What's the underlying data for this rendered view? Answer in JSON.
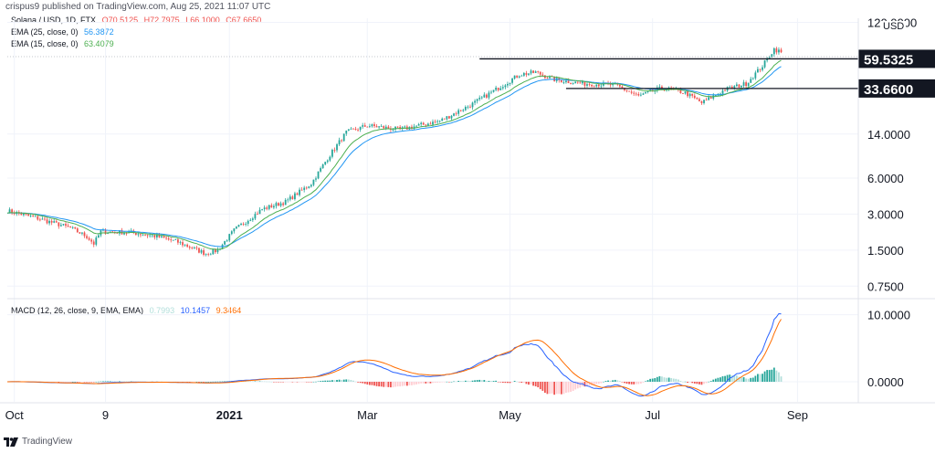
{
  "header": {
    "publish_line": "crispus9 published on TradingView.com, Aug 25, 2021 11:07 UTC",
    "symbol": "Solana / USD, 1D, FTX",
    "ohlc": {
      "o": "O70.5125",
      "h": "H72.7975",
      "l": "L66.1000",
      "c": "C67.6650"
    }
  },
  "indicators": [
    {
      "label": "EMA (25, close, 0)",
      "value": "56.3872",
      "color": "#2196f3"
    },
    {
      "label": "EMA (15, close, 0)",
      "value": "63.4079",
      "color": "#4caf50"
    }
  ],
  "macd": {
    "label": "MACD (12, 26, close, 9, EMA, EMA)",
    "histogram_value": "0.7993",
    "macd_value": "10.1457",
    "signal_value": "9.3464",
    "histogram_color": "#b2dfdb",
    "macd_color": "#2962ff",
    "signal_color": "#ff6d00"
  },
  "price_axis": {
    "currency": "USD",
    "tick_labels": [
      "120.0000",
      "14.0000",
      "6.0000",
      "3.0000",
      "1.5000",
      "0.7500"
    ],
    "macd_tick_labels": [
      "10.0000",
      "0.0000"
    ]
  },
  "levels": [
    {
      "label": "59.5325",
      "value": 59.5325
    },
    {
      "label": "33.6600",
      "value": 33.66
    }
  ],
  "time_axis": {
    "labels": [
      "Oct",
      "9",
      "2021",
      "Mar",
      "May",
      "Jul",
      "Sep"
    ]
  },
  "footer": {
    "brand": "TradingView",
    "logo_icon": "tradingview-logo-icon"
  },
  "colors": {
    "up": "#26a69a",
    "down": "#ef5350",
    "grid": "#f0f3fa",
    "axis_line": "#e0e3eb"
  },
  "chart_data": {
    "type": "candlestick",
    "scale": "log",
    "title": "Solana / USD, 1D, FTX",
    "ylabel": "USD",
    "ylim": [
      0.6,
      130
    ],
    "x": [
      "2020-10",
      "2020-11",
      "2020-12",
      "2021-01",
      "2021-02",
      "2021-03",
      "2021-04",
      "2021-05",
      "2021-06",
      "2021-07",
      "2021-08"
    ],
    "close_anchors": {
      "dates": [
        "2020-09-28",
        "2020-10-10",
        "2020-10-25",
        "2020-11-01",
        "2020-11-04",
        "2020-11-07",
        "2020-11-20",
        "2020-12-01",
        "2020-12-10",
        "2020-12-22",
        "2020-12-27",
        "2021-01-03",
        "2021-01-15",
        "2021-01-25",
        "2021-02-05",
        "2021-02-12",
        "2021-02-20",
        "2021-03-01",
        "2021-03-15",
        "2021-04-01",
        "2021-04-15",
        "2021-04-25",
        "2021-05-05",
        "2021-05-12",
        "2021-05-20",
        "2021-06-01",
        "2021-06-15",
        "2021-06-25",
        "2021-07-05",
        "2021-07-15",
        "2021-07-22",
        "2021-08-01",
        "2021-08-10",
        "2021-08-17",
        "2021-08-22",
        "2021-08-25"
      ],
      "close": [
        3.2,
        2.8,
        2.3,
        1.95,
        1.7,
        2.15,
        2.1,
        1.95,
        1.75,
        1.4,
        1.5,
        2.2,
        3.3,
        3.8,
        5.4,
        8.8,
        14.5,
        16.5,
        15.3,
        18.0,
        25.0,
        33.0,
        44.0,
        46.0,
        40.0,
        37.0,
        36.0,
        29.0,
        34.0,
        31.0,
        25.5,
        33.0,
        37.0,
        52.0,
        72.0,
        67.665
      ]
    },
    "series": [
      {
        "name": "EMA (25, close, 0)",
        "last": 56.3872
      },
      {
        "name": "EMA (15, close, 0)",
        "last": 63.4079
      }
    ],
    "horizontal_levels": [
      59.5325,
      33.66
    ],
    "macd_panel": {
      "ylim": [
        -3,
        12
      ],
      "ticks": [
        10,
        0
      ],
      "macd_last": 10.1457,
      "signal_last": 9.3464,
      "histogram_last": 0.7993
    }
  }
}
